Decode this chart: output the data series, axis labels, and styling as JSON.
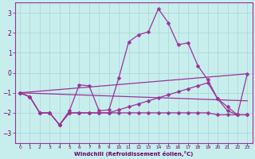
{
  "xlabel": "Windchill (Refroidissement éolien,°C)",
  "bg_color": "#c8eded",
  "grid_color": "#aad4d4",
  "line_color": "#993399",
  "xlim": [
    -0.5,
    23.5
  ],
  "ylim": [
    -3.5,
    3.5
  ],
  "yticks": [
    -3,
    -2,
    -1,
    0,
    1,
    2,
    3
  ],
  "xticks": [
    0,
    1,
    2,
    3,
    4,
    5,
    6,
    7,
    8,
    9,
    10,
    11,
    12,
    13,
    14,
    15,
    16,
    17,
    18,
    19,
    20,
    21,
    22,
    23
  ],
  "line1_x": [
    0,
    1,
    2,
    3,
    4,
    5,
    6,
    7,
    8,
    9,
    10,
    11,
    12,
    13,
    14,
    15,
    16,
    17,
    18,
    19,
    20,
    21,
    22,
    23
  ],
  "line1_y": [
    -1.0,
    -1.2,
    -2.0,
    -2.0,
    -2.6,
    -1.9,
    -0.6,
    -0.65,
    -1.9,
    -1.85,
    -0.25,
    1.55,
    1.9,
    2.05,
    3.2,
    2.5,
    1.4,
    1.5,
    0.35,
    -0.35,
    -1.3,
    -1.9,
    -2.1,
    -0.05
  ],
  "line2_x": [
    0,
    1,
    2,
    3,
    4,
    5,
    6,
    7,
    8,
    9,
    10,
    11,
    12,
    13,
    14,
    15,
    16,
    17,
    18,
    19,
    20,
    21,
    22,
    23
  ],
  "line2_y": [
    -1.0,
    -1.2,
    -2.0,
    -2.0,
    -2.6,
    -2.0,
    -2.0,
    -2.0,
    -2.0,
    -2.0,
    -2.0,
    -2.0,
    -2.0,
    -2.0,
    -2.0,
    -2.0,
    -2.0,
    -2.0,
    -2.0,
    -2.0,
    -2.1,
    -2.1,
    -2.1,
    -2.1
  ],
  "line3_x": [
    0,
    23
  ],
  "line3_y": [
    -1.0,
    -0.05
  ],
  "line4_x": [
    0,
    23
  ],
  "line4_y": [
    -1.0,
    -1.4
  ],
  "line5_x": [
    0,
    1,
    2,
    3,
    4,
    5,
    6,
    7,
    8,
    9,
    10,
    11,
    12,
    13,
    14,
    15,
    16,
    17,
    18,
    19,
    20,
    21,
    22,
    23
  ],
  "line5_y": [
    -1.0,
    -1.2,
    -2.0,
    -2.0,
    -2.6,
    -2.0,
    -2.0,
    -2.0,
    -2.0,
    -2.0,
    -1.85,
    -1.7,
    -1.55,
    -1.4,
    -1.25,
    -1.1,
    -0.95,
    -0.8,
    -0.65,
    -0.5,
    -1.3,
    -1.7,
    -2.1,
    -2.1
  ]
}
